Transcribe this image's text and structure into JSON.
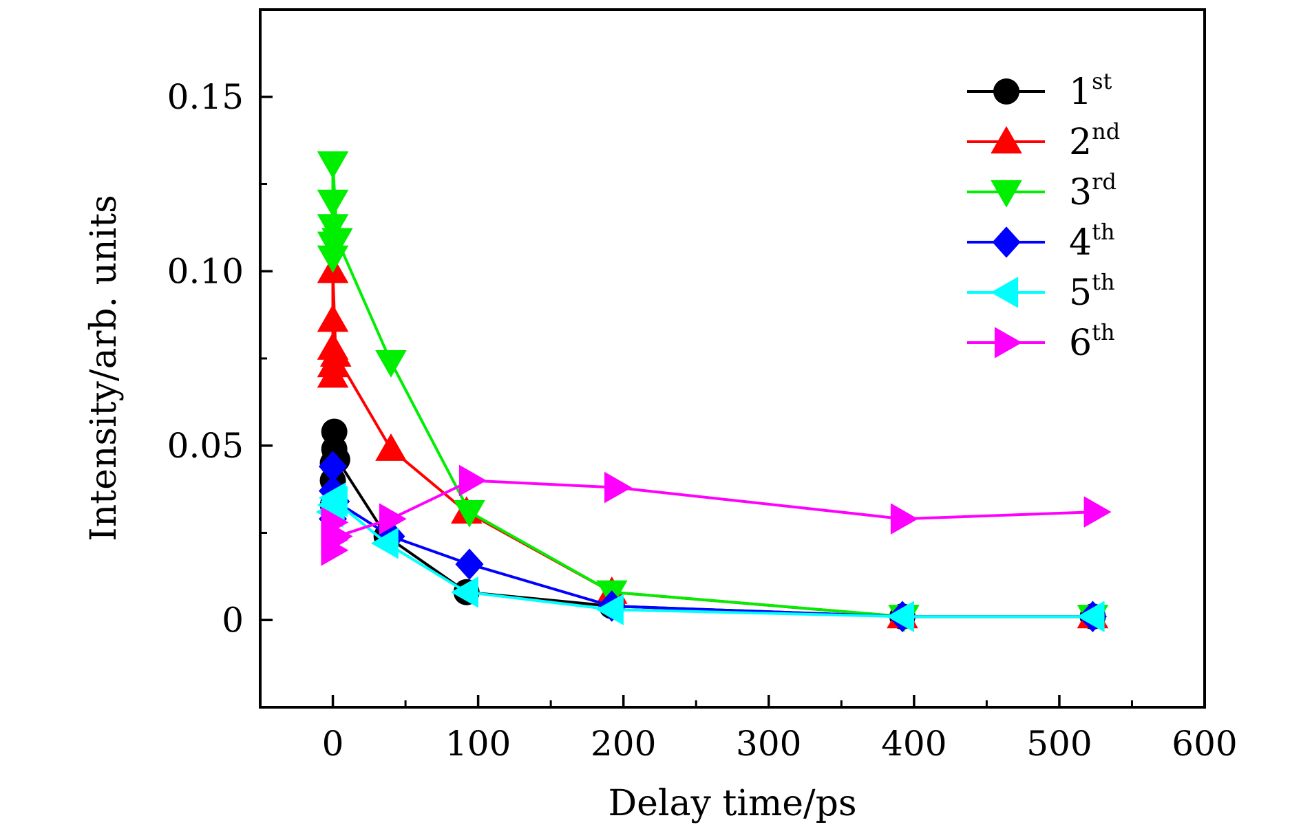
{
  "chart_data": {
    "type": "line",
    "title": "",
    "xlabel": "Delay time/ps",
    "ylabel": "Intensity/arb. units",
    "xlim": [
      -50,
      600
    ],
    "ylim": [
      -0.025,
      0.175
    ],
    "xticks": [
      0,
      100,
      200,
      300,
      400,
      500,
      600
    ],
    "xtick_labels": [
      "0",
      "100",
      "200",
      "300",
      "400",
      "500",
      "600"
    ],
    "yticks": [
      0,
      0.05,
      0.1,
      0.15
    ],
    "ytick_labels": [
      "0",
      "0.05",
      "0.10",
      "0.15"
    ],
    "legend_position": "top-right",
    "series": [
      {
        "name": "1st",
        "base": "1",
        "sup": "st",
        "color": "#000000",
        "marker": "circle",
        "points": [
          [
            0,
            0.033
          ],
          [
            0,
            0.04
          ],
          [
            0,
            0.045
          ],
          [
            1,
            0.049
          ],
          [
            1,
            0.054
          ],
          [
            3,
            0.046
          ],
          [
            37,
            0.024
          ],
          [
            92,
            0.008
          ],
          [
            192,
            0.004
          ],
          [
            392,
            0.001
          ],
          [
            523,
            0.001
          ]
        ]
      },
      {
        "name": "2nd",
        "base": "2",
        "sup": "nd",
        "color": "#ff0000",
        "marker": "triangle-up",
        "points": [
          [
            0,
            0.07
          ],
          [
            0,
            0.073
          ],
          [
            0,
            0.078
          ],
          [
            0,
            0.086
          ],
          [
            0,
            0.1
          ],
          [
            2,
            0.076
          ],
          [
            40,
            0.049
          ],
          [
            92,
            0.031
          ],
          [
            192,
            0.008
          ],
          [
            392,
            0.001
          ],
          [
            523,
            0.001
          ]
        ]
      },
      {
        "name": "3rd",
        "base": "3",
        "sup": "rd",
        "color": "#00ee00",
        "marker": "triangle-down",
        "points": [
          [
            0,
            0.104
          ],
          [
            0,
            0.108
          ],
          [
            0,
            0.113
          ],
          [
            0,
            0.12
          ],
          [
            0,
            0.131
          ],
          [
            3,
            0.109
          ],
          [
            40,
            0.074
          ],
          [
            94,
            0.031
          ],
          [
            192,
            0.008
          ],
          [
            393,
            0.001
          ],
          [
            523,
            0.001
          ]
        ]
      },
      {
        "name": "4th",
        "base": "4",
        "sup": "th",
        "color": "#0000ff",
        "marker": "diamond",
        "points": [
          [
            0,
            0.029
          ],
          [
            0,
            0.033
          ],
          [
            0,
            0.037
          ],
          [
            0,
            0.044
          ],
          [
            2,
            0.034
          ],
          [
            40,
            0.024
          ],
          [
            94,
            0.016
          ],
          [
            192,
            0.004
          ],
          [
            392,
            0.001
          ],
          [
            523,
            0.001
          ]
        ]
      },
      {
        "name": "5th",
        "base": "5",
        "sup": "th",
        "color": "#00ffff",
        "marker": "triangle-left",
        "points": [
          [
            -1,
            0.031
          ],
          [
            0,
            0.033
          ],
          [
            1,
            0.035
          ],
          [
            2,
            0.034
          ],
          [
            37,
            0.022
          ],
          [
            92,
            0.008
          ],
          [
            192,
            0.003
          ],
          [
            392,
            0.001
          ],
          [
            523,
            0.001
          ]
        ]
      },
      {
        "name": "6th",
        "base": "6",
        "sup": "th",
        "color": "#ff00ff",
        "marker": "triangle-right",
        "points": [
          [
            0,
            0.02
          ],
          [
            0,
            0.023
          ],
          [
            0,
            0.028
          ],
          [
            3,
            0.024
          ],
          [
            40,
            0.029
          ],
          [
            95,
            0.04
          ],
          [
            195,
            0.038
          ],
          [
            392,
            0.029
          ],
          [
            525,
            0.031
          ]
        ]
      }
    ]
  }
}
